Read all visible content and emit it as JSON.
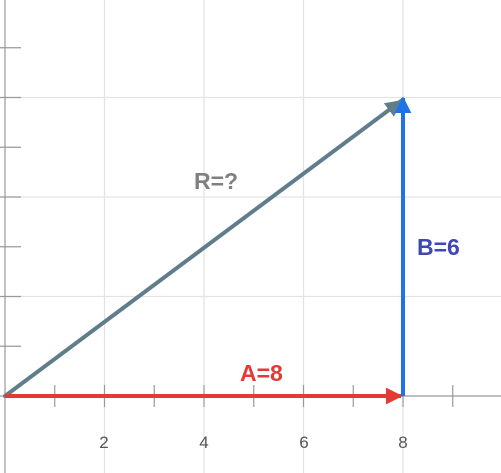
{
  "diagram": {
    "x_ticks": [
      "2",
      "4",
      "6",
      "8"
    ],
    "vectors": {
      "a": {
        "label": "A=8",
        "value": 8,
        "direction": "x",
        "color": "#e53935"
      },
      "b": {
        "label": "B=6",
        "value": 6,
        "direction": "y",
        "color": "#1e74e6"
      },
      "r": {
        "label": "R=?",
        "color": "#607d8b"
      }
    },
    "label_colors": {
      "a": "#e53935",
      "b": "#3f47b5",
      "r": "#808080"
    },
    "grid_color": "#e3e3e3",
    "axis_color": "#9a9a9a"
  }
}
